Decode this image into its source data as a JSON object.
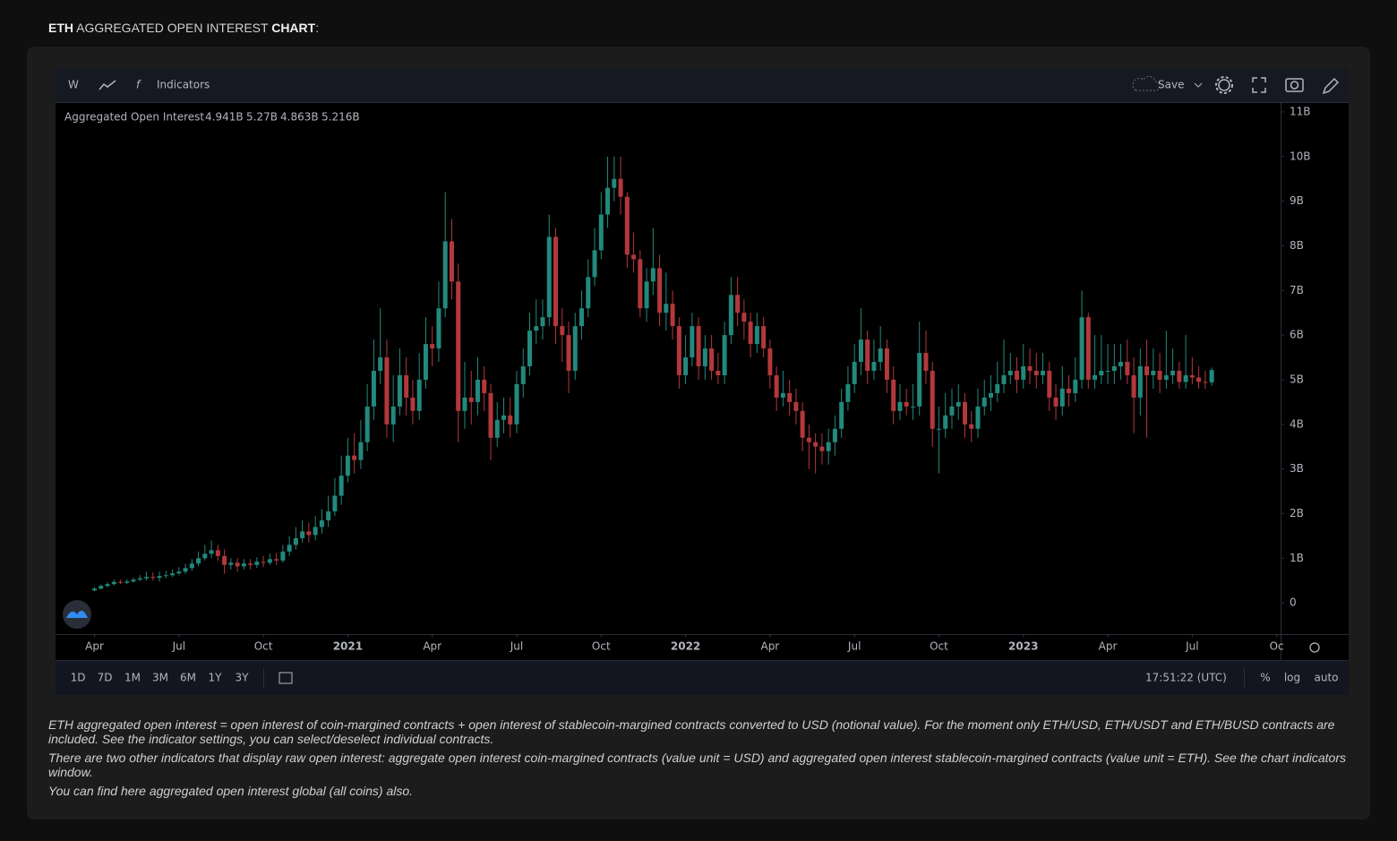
{
  "header": {
    "title_parts": [
      "ETH",
      " AGGREGATED OPEN INTEREST ",
      "CHART",
      ":"
    ]
  },
  "toolbar": {
    "interval": "W",
    "indicators": "Indicators",
    "save": "Save"
  },
  "chart_data": {
    "type": "candlestick",
    "series_name": "Aggregated Open Interest",
    "ohlc_labels": [
      "4.941B",
      "5.27B",
      "4.863B",
      "5.216B"
    ],
    "up_color": "#22897c",
    "down_color": "#b3383b",
    "ylim": [
      -0.7,
      11.2
    ],
    "yticks": [
      {
        "value": 0,
        "label": "0"
      },
      {
        "value": 1,
        "label": "1B"
      },
      {
        "value": 2,
        "label": "2B"
      },
      {
        "value": 3,
        "label": "3B"
      },
      {
        "value": 4,
        "label": "4B"
      },
      {
        "value": 5,
        "label": "5B"
      },
      {
        "value": 6,
        "label": "6B"
      },
      {
        "value": 7,
        "label": "7B"
      },
      {
        "value": 8,
        "label": "8B"
      },
      {
        "value": 9,
        "label": "9B"
      },
      {
        "value": 10,
        "label": "10B"
      },
      {
        "value": 11,
        "label": "11B"
      }
    ],
    "xlim": [
      -6,
      182.6
    ],
    "xticks": [
      {
        "value": 0,
        "label": "Apr"
      },
      {
        "value": 13,
        "label": "Jul"
      },
      {
        "value": 26,
        "label": "Oct"
      },
      {
        "value": 39,
        "label": "2021"
      },
      {
        "value": 52,
        "label": "Apr"
      },
      {
        "value": 65,
        "label": "Jul"
      },
      {
        "value": 78,
        "label": "Oct"
      },
      {
        "value": 91,
        "label": "2022"
      },
      {
        "value": 104,
        "label": "Apr"
      },
      {
        "value": 117,
        "label": "Jul"
      },
      {
        "value": 130,
        "label": "Oct"
      },
      {
        "value": 143,
        "label": "2023"
      },
      {
        "value": 156,
        "label": "Apr"
      },
      {
        "value": 169,
        "label": "Jul"
      },
      {
        "value": 182,
        "label": "Oc"
      }
    ],
    "open": [
      0.28,
      0.32,
      0.38,
      0.42,
      0.47,
      0.45,
      0.48,
      0.52,
      0.55,
      0.58,
      0.56,
      0.6,
      0.62,
      0.66,
      0.7,
      0.78,
      0.88,
      1.0,
      1.1,
      1.18,
      1.05,
      0.85,
      0.9,
      0.82,
      0.88,
      0.85,
      0.92,
      0.9,
      0.98,
      0.95,
      1.15,
      1.3,
      1.45,
      1.6,
      1.52,
      1.7,
      1.85,
      2.05,
      2.4,
      2.85,
      3.3,
      3.2,
      3.6,
      4.4,
      5.2,
      5.5,
      4.0,
      4.4,
      5.1,
      4.6,
      4.3,
      5.0,
      5.8,
      5.7,
      6.6,
      8.1,
      7.2,
      4.3,
      4.6,
      4.5,
      5.0,
      4.7,
      3.7,
      4.1,
      4.2,
      4.0,
      4.9,
      5.3,
      6.1,
      6.2,
      6.4,
      8.2,
      6.2,
      6.0,
      5.2,
      6.2,
      6.6,
      7.3,
      7.9,
      8.7,
      9.3,
      9.5,
      9.1,
      7.8,
      7.7,
      6.6,
      7.2,
      7.5,
      6.5,
      6.7,
      6.2,
      5.1,
      5.5,
      6.2,
      5.3,
      5.7,
      5.2,
      5.1,
      6.0,
      6.9,
      6.5,
      6.3,
      5.8,
      6.2,
      5.7,
      5.1,
      4.6,
      4.7,
      4.5,
      4.3,
      3.7,
      3.6,
      3.5,
      3.4,
      3.6,
      3.9,
      4.5,
      4.9,
      5.4,
      5.9,
      5.2,
      5.4,
      5.7,
      5.0,
      4.3,
      4.5,
      4.4,
      4.4,
      5.6,
      5.2,
      3.9,
      3.9,
      4.2,
      4.4,
      4.5,
      4.0,
      3.9,
      4.4,
      4.6,
      4.7,
      4.9,
      5.1,
      5.2,
      5.0,
      5.3,
      5.2,
      5.1,
      5.2,
      4.6,
      4.4,
      4.8,
      4.7,
      5.0,
      6.4,
      5.0,
      5.1,
      5.2,
      5.2,
      5.3,
      5.4,
      5.1,
      4.6,
      5.3,
      5.1,
      5.2,
      5.0,
      5.1,
      5.2,
      4.95,
      5.1,
      5.05,
      4.95,
      4.941
    ],
    "high": [
      0.35,
      0.41,
      0.46,
      0.52,
      0.52,
      0.53,
      0.57,
      0.62,
      0.7,
      0.68,
      0.7,
      0.72,
      0.75,
      0.8,
      0.88,
      0.98,
      1.15,
      1.3,
      1.4,
      1.3,
      1.2,
      1.0,
      1.0,
      0.98,
      0.98,
      1.02,
      1.05,
      1.1,
      1.12,
      1.3,
      1.5,
      1.7,
      1.85,
      1.8,
      1.95,
      2.1,
      2.4,
      2.8,
      3.3,
      3.7,
      3.8,
      4.1,
      4.9,
      5.9,
      6.6,
      5.9,
      5.1,
      5.7,
      5.5,
      5.0,
      5.6,
      6.4,
      6.2,
      7.2,
      9.2,
      8.6,
      7.6,
      5.4,
      5.2,
      5.5,
      5.3,
      4.9,
      4.5,
      4.6,
      4.6,
      5.2,
      5.7,
      6.5,
      6.8,
      6.8,
      8.7,
      8.4,
      6.6,
      6.3,
      6.5,
      7.0,
      7.7,
      8.4,
      9.2,
      10.0,
      10.0,
      10.0,
      9.2,
      8.3,
      7.9,
      7.5,
      8.4,
      7.8,
      7.4,
      7.0,
      6.4,
      6.0,
      6.5,
      6.4,
      6.0,
      6.0,
      5.6,
      6.3,
      7.3,
      7.3,
      6.8,
      6.5,
      6.5,
      6.4,
      5.9,
      5.3,
      5.2,
      5.0,
      4.8,
      4.5,
      4.0,
      3.8,
      3.8,
      3.9,
      4.2,
      4.8,
      5.3,
      5.8,
      6.6,
      6.1,
      5.9,
      6.2,
      5.9,
      5.3,
      4.9,
      4.8,
      4.9,
      6.3,
      6.1,
      5.4,
      4.4,
      4.7,
      4.8,
      4.9,
      4.7,
      4.3,
      4.8,
      5.0,
      5.1,
      5.4,
      5.9,
      5.6,
      5.5,
      5.8,
      5.7,
      5.6,
      5.6,
      5.4,
      4.9,
      5.3,
      5.1,
      5.5,
      7.0,
      6.5,
      6.0,
      6.0,
      5.8,
      5.8,
      5.8,
      5.9,
      5.5,
      5.7,
      5.9,
      5.7,
      5.6,
      6.1,
      5.7,
      5.4,
      6.0,
      5.5,
      5.3,
      5.2,
      5.27
    ],
    "low": [
      0.26,
      0.3,
      0.35,
      0.39,
      0.42,
      0.42,
      0.45,
      0.49,
      0.5,
      0.5,
      0.48,
      0.55,
      0.58,
      0.62,
      0.65,
      0.72,
      0.82,
      0.95,
      1.0,
      0.95,
      0.65,
      0.75,
      0.7,
      0.75,
      0.75,
      0.78,
      0.8,
      0.85,
      0.85,
      0.9,
      1.05,
      1.2,
      1.35,
      1.35,
      1.4,
      1.55,
      1.7,
      1.95,
      2.2,
      2.7,
      2.9,
      3.0,
      3.4,
      4.1,
      4.9,
      3.7,
      3.6,
      4.2,
      4.2,
      4.0,
      4.1,
      4.8,
      5.3,
      5.4,
      6.4,
      6.8,
      3.6,
      3.9,
      4.0,
      4.2,
      4.3,
      3.2,
      3.5,
      3.8,
      3.7,
      3.8,
      4.6,
      5.1,
      5.8,
      5.9,
      6.2,
      5.8,
      5.4,
      4.7,
      5.0,
      5.9,
      6.4,
      7.1,
      7.7,
      8.4,
      9.0,
      8.7,
      7.5,
      7.4,
      6.4,
      6.3,
      6.9,
      6.2,
      6.1,
      5.9,
      4.8,
      4.9,
      5.3,
      5.0,
      5.0,
      5.0,
      4.9,
      4.9,
      5.8,
      6.2,
      5.9,
      5.5,
      5.6,
      5.5,
      4.8,
      4.3,
      4.4,
      4.2,
      4.0,
      3.4,
      3.0,
      2.9,
      3.1,
      3.1,
      3.3,
      3.7,
      4.3,
      4.7,
      5.1,
      4.9,
      5.0,
      5.2,
      4.7,
      4.0,
      4.1,
      4.2,
      4.1,
      4.2,
      4.9,
      3.5,
      2.9,
      3.7,
      3.9,
      4.1,
      3.7,
      3.6,
      3.7,
      4.2,
      4.3,
      4.5,
      4.7,
      4.9,
      4.7,
      4.8,
      4.9,
      4.8,
      4.9,
      4.3,
      4.1,
      4.2,
      4.4,
      4.5,
      4.8,
      4.8,
      4.8,
      4.9,
      4.9,
      4.9,
      5.0,
      4.9,
      3.8,
      4.2,
      3.7,
      4.8,
      4.7,
      4.8,
      4.9,
      4.8,
      4.8,
      4.9,
      4.8,
      4.8,
      4.863
    ],
    "close": [
      0.32,
      0.38,
      0.42,
      0.47,
      0.45,
      0.48,
      0.52,
      0.55,
      0.58,
      0.56,
      0.6,
      0.62,
      0.66,
      0.7,
      0.78,
      0.88,
      1.0,
      1.1,
      1.18,
      1.05,
      0.85,
      0.9,
      0.82,
      0.88,
      0.85,
      0.92,
      0.9,
      0.98,
      0.95,
      1.15,
      1.3,
      1.45,
      1.6,
      1.52,
      1.7,
      1.85,
      2.05,
      2.4,
      2.85,
      3.3,
      3.2,
      3.6,
      4.4,
      5.2,
      5.5,
      4.0,
      4.4,
      5.1,
      4.6,
      4.3,
      5.0,
      5.8,
      5.7,
      6.6,
      8.1,
      7.2,
      4.3,
      4.6,
      4.5,
      5.0,
      4.7,
      3.7,
      4.1,
      4.2,
      4.0,
      4.9,
      5.3,
      6.1,
      6.2,
      6.4,
      8.2,
      6.2,
      6.0,
      5.2,
      6.2,
      6.6,
      7.3,
      7.9,
      8.7,
      9.3,
      9.5,
      9.1,
      7.8,
      7.7,
      6.6,
      7.2,
      7.5,
      6.5,
      6.7,
      6.2,
      5.1,
      5.5,
      6.2,
      5.3,
      5.7,
      5.2,
      5.1,
      6.0,
      6.9,
      6.5,
      6.3,
      5.8,
      6.2,
      5.7,
      5.1,
      4.6,
      4.7,
      4.5,
      4.3,
      3.7,
      3.6,
      3.5,
      3.4,
      3.6,
      3.9,
      4.5,
      4.9,
      5.4,
      5.9,
      5.2,
      5.4,
      5.7,
      5.0,
      4.3,
      4.5,
      4.4,
      4.4,
      5.6,
      5.2,
      3.9,
      3.9,
      4.2,
      4.4,
      4.5,
      4.0,
      3.9,
      4.4,
      4.6,
      4.7,
      4.9,
      5.1,
      5.2,
      5.0,
      5.3,
      5.2,
      5.1,
      5.2,
      4.6,
      4.4,
      4.8,
      4.7,
      5.0,
      6.4,
      5.0,
      5.1,
      5.2,
      5.2,
      5.3,
      5.4,
      5.1,
      4.6,
      5.3,
      5.1,
      5.2,
      5.0,
      5.1,
      5.2,
      4.95,
      5.1,
      5.05,
      4.95,
      4.941,
      5.216
    ]
  },
  "footer": {
    "ranges": [
      "1D",
      "7D",
      "1M",
      "3M",
      "6M",
      "1Y",
      "3Y"
    ],
    "time": "17:51:22 (UTC)",
    "scale_options": [
      "%",
      "log",
      "auto"
    ]
  },
  "notes": [
    "ETH aggregated open interest = open interest of coin-margined contracts + open interest of stablecoin-margined contracts converted to USD (notional value). For the moment only ETH/USD, ETH/USDT and ETH/BUSD contracts are included. See the indicator settings, you can select/deselect individual contracts.",
    "There are two other indicators that display raw open interest: aggregate open interest coin-margined contracts (value unit = USD) and aggregated open interest stablecoin-margined contracts (value unit = ETH). See the chart indicators window.",
    "You can find here aggregated open interest global (all coins) also."
  ]
}
